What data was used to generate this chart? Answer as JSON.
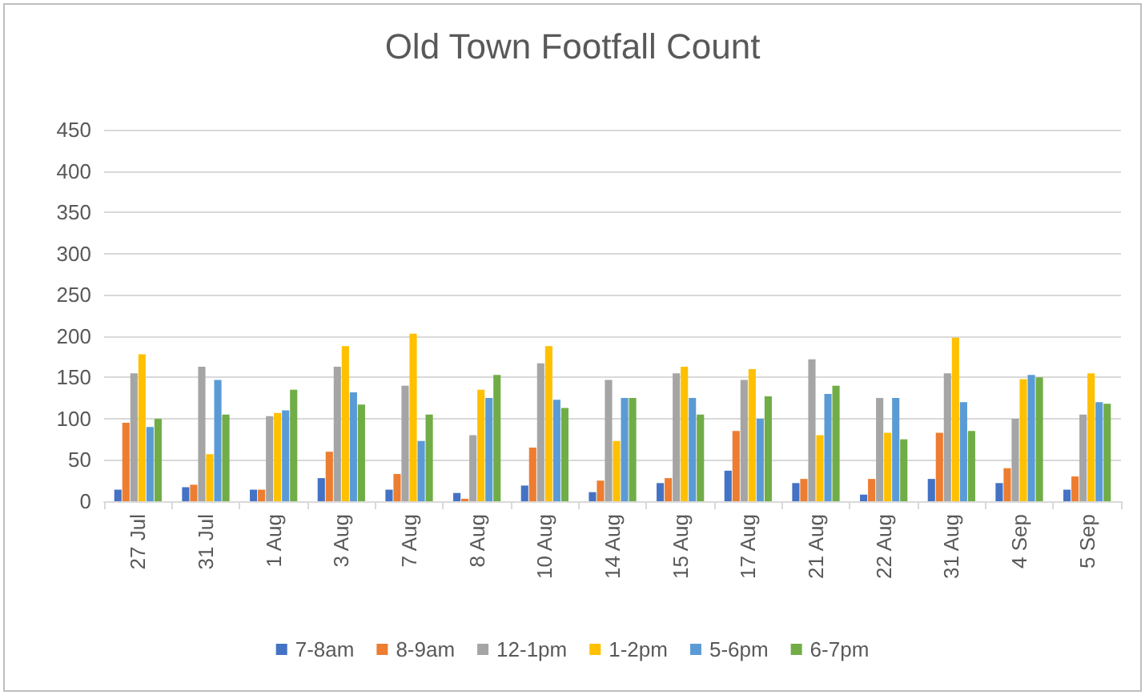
{
  "chart_data": {
    "type": "bar",
    "title": "Old Town Footfall Count",
    "categories": [
      "27 Jul",
      "31 Jul",
      "1 Aug",
      "3 Aug",
      "7 Aug",
      "8 Aug",
      "10 Aug",
      "14 Aug",
      "15 Aug",
      "17 Aug",
      "21 Aug",
      "22 Aug",
      "31 Aug",
      "4 Sep",
      "5 Sep"
    ],
    "series": [
      {
        "name": "7-8am",
        "color": "#4472c4",
        "values": [
          14,
          17,
          14,
          28,
          14,
          10,
          19,
          11,
          22,
          37,
          22,
          8,
          27,
          22,
          14
        ]
      },
      {
        "name": "8-9am",
        "color": "#ed7d31",
        "values": [
          95,
          20,
          14,
          60,
          33,
          3,
          65,
          25,
          28,
          85,
          27,
          27,
          83,
          40,
          30
        ]
      },
      {
        "name": "12-1pm",
        "color": "#a5a5a5",
        "values": [
          155,
          163,
          103,
          163,
          140,
          80,
          167,
          147,
          155,
          147,
          172,
          125,
          155,
          100,
          105
        ]
      },
      {
        "name": "1-2pm",
        "color": "#ffc000",
        "values": [
          178,
          57,
          107,
          188,
          203,
          135,
          188,
          73,
          163,
          160,
          80,
          83,
          198,
          148,
          155
        ]
      },
      {
        "name": "5-6pm",
        "color": "#5b9bd5",
        "values": [
          90,
          147,
          110,
          132,
          73,
          125,
          123,
          125,
          125,
          100,
          130,
          125,
          120,
          153,
          120
        ]
      },
      {
        "name": "6-7pm",
        "color": "#70ad47",
        "values": [
          100,
          105,
          135,
          117,
          105,
          153,
          113,
          125,
          105,
          127,
          140,
          75,
          85,
          150,
          118
        ]
      }
    ],
    "ylim": [
      0,
      450
    ],
    "yticks": [
      0,
      50,
      100,
      150,
      200,
      250,
      300,
      350,
      400,
      450
    ],
    "grid": "y",
    "legend": "bottom"
  }
}
